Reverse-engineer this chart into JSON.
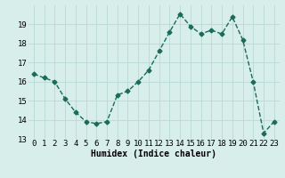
{
  "x": [
    0,
    1,
    2,
    3,
    4,
    5,
    6,
    7,
    8,
    9,
    10,
    11,
    12,
    13,
    14,
    15,
    16,
    17,
    18,
    19,
    20,
    21,
    22,
    23
  ],
  "y": [
    16.4,
    16.2,
    16.0,
    15.1,
    14.4,
    13.9,
    13.8,
    13.9,
    15.3,
    15.5,
    16.0,
    16.6,
    17.6,
    18.6,
    19.55,
    18.9,
    18.5,
    18.7,
    18.5,
    19.4,
    18.2,
    16.0,
    13.3,
    13.9
  ],
  "line_color": "#1a6b5a",
  "marker": "D",
  "marker_size": 2.5,
  "line_width": 1.0,
  "bg_color": "#d8eeeb",
  "grid_color": "#b8d8d4",
  "xlabel": "Humidex (Indice chaleur)",
  "xlabel_fontsize": 7,
  "tick_fontsize": 6.5,
  "ylim": [
    13,
    20
  ],
  "xlim": [
    -0.5,
    23.5
  ],
  "yticks": [
    13,
    14,
    15,
    16,
    17,
    18,
    19
  ],
  "xticks": [
    0,
    1,
    2,
    3,
    4,
    5,
    6,
    7,
    8,
    9,
    10,
    11,
    12,
    13,
    14,
    15,
    16,
    17,
    18,
    19,
    20,
    21,
    22,
    23
  ]
}
